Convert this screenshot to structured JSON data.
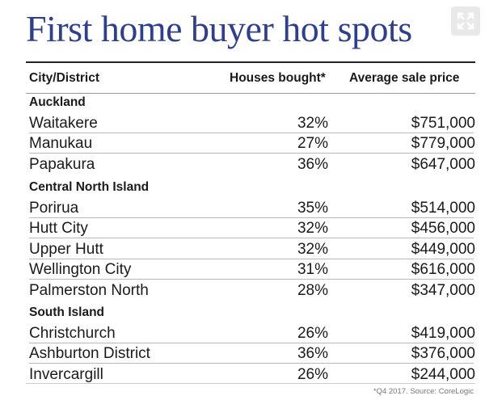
{
  "title": "First home buyer hot spots",
  "expand_icon": "expand-icon",
  "headers": {
    "city": "City/District",
    "houses": "Houses bought*",
    "price": "Average sale price"
  },
  "regions": [
    {
      "name": "Auckland",
      "rows": [
        {
          "city": "Waitakere",
          "houses": "32%",
          "price": "$751,000"
        },
        {
          "city": "Manukau",
          "houses": "27%",
          "price": "$779,000"
        },
        {
          "city": "Papakura",
          "houses": "36%",
          "price": "$647,000"
        }
      ]
    },
    {
      "name": "Central North Island",
      "rows": [
        {
          "city": "Porirua",
          "houses": "35%",
          "price": "$514,000"
        },
        {
          "city": "Hutt City",
          "houses": "32%",
          "price": "$456,000"
        },
        {
          "city": "Upper Hutt",
          "houses": "32%",
          "price": "$449,000"
        },
        {
          "city": "Wellington City",
          "houses": "31%",
          "price": "$616,000"
        },
        {
          "city": "Palmerston North",
          "houses": "28%",
          "price": "$347,000"
        }
      ]
    },
    {
      "name": "South Island",
      "rows": [
        {
          "city": "Christchurch",
          "houses": "26%",
          "price": "$419,000"
        },
        {
          "city": "Ashburton District",
          "houses": "36%",
          "price": "$376,000"
        },
        {
          "city": "Invercargill",
          "houses": "26%",
          "price": "$244,000"
        }
      ]
    }
  ],
  "footnote": "*Q4 2017. Source: CoreLogic",
  "colors": {
    "title": "#2f3f8f",
    "text": "#1a1a1a",
    "footnote": "#777777"
  }
}
